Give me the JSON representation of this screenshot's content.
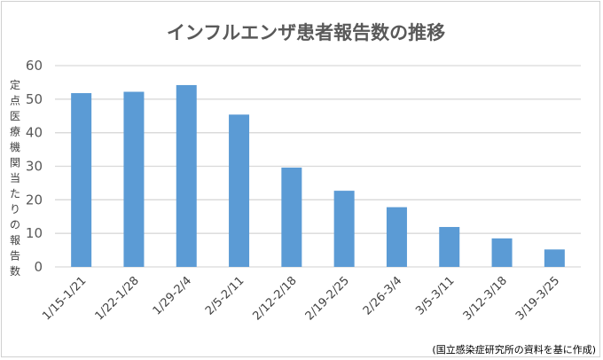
{
  "chart_data": {
    "type": "bar",
    "title": "インフルエンザ患者報告数の推移",
    "ylabel": "定点医療機関当たりの報告数",
    "xlabel": "",
    "categories": [
      "1/15-1/21",
      "1/22-1/28",
      "1/29-2/4",
      "2/5-2/11",
      "2/12-2/18",
      "2/19-2/25",
      "2/26-3/4",
      "3/5-3/11",
      "3/12-3/18",
      "3/19-3/25"
    ],
    "values": [
      51.8,
      52.2,
      54.2,
      45.4,
      29.6,
      22.7,
      17.8,
      11.9,
      8.5,
      5.2
    ],
    "ylim": [
      0,
      60
    ],
    "yticks": [
      0,
      10,
      20,
      30,
      40,
      50,
      60
    ],
    "grid": true,
    "legend": "none",
    "bar_color": "#5b9bd5",
    "annotation": "(国立感染症研究所の資料を基に作成)"
  }
}
